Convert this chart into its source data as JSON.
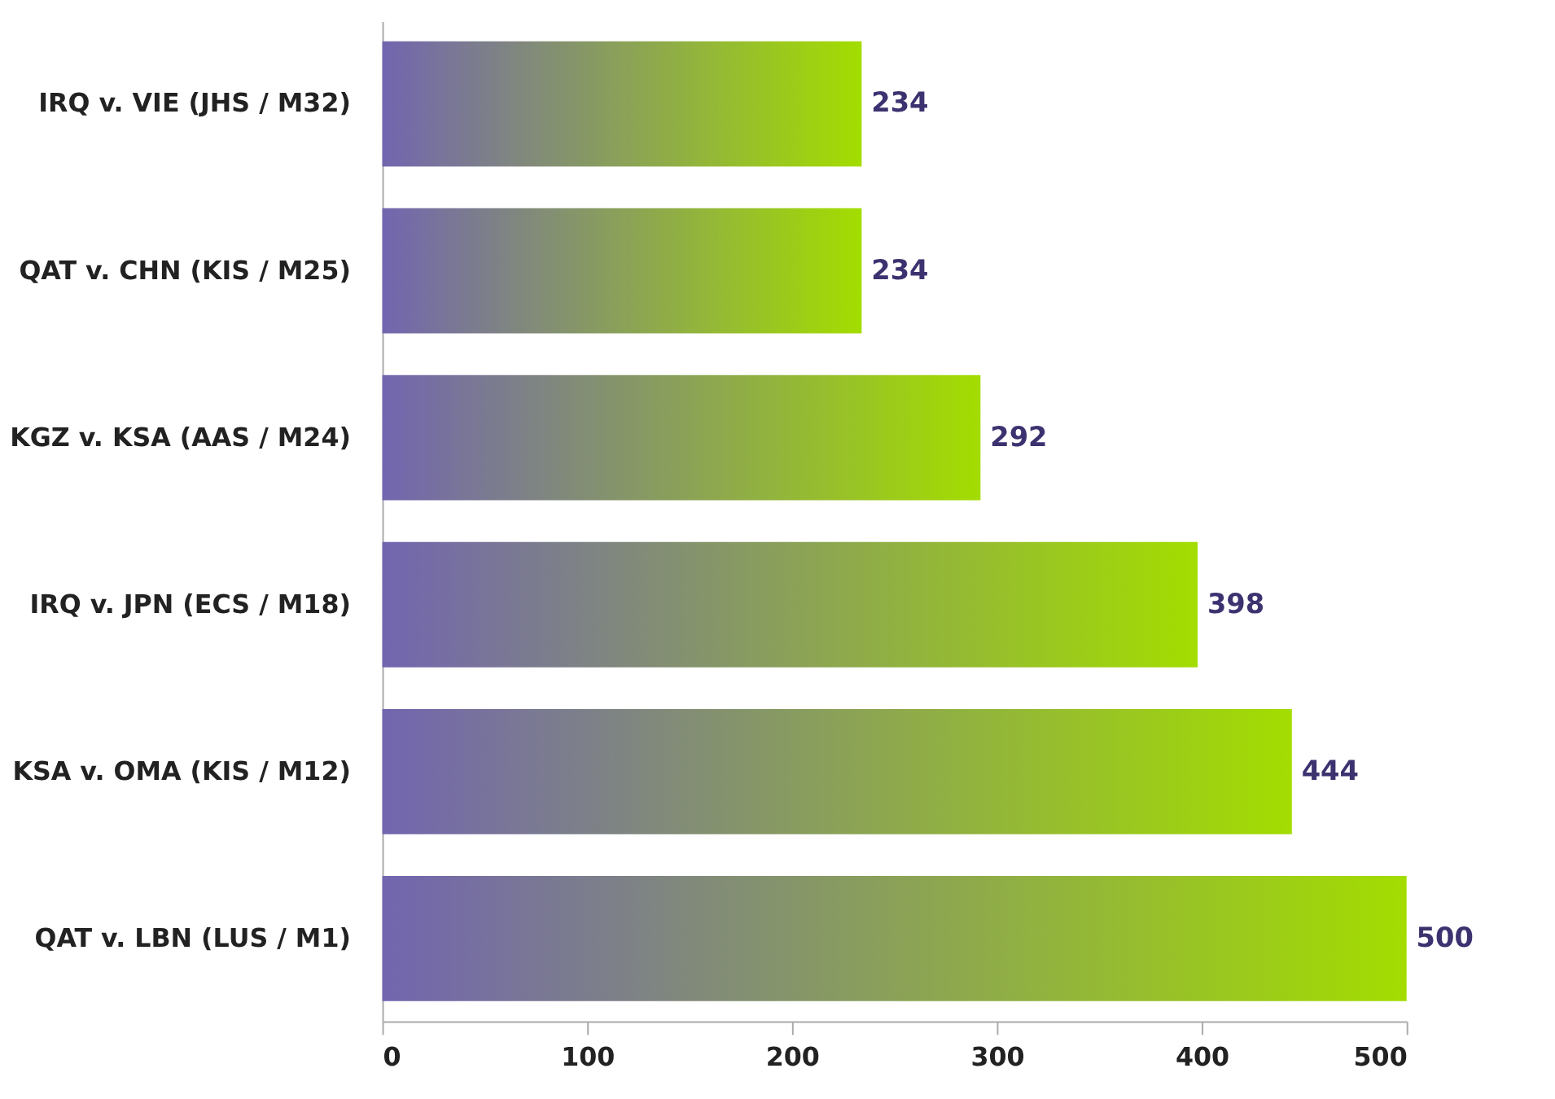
{
  "chart_data": {
    "type": "bar",
    "orientation": "horizontal",
    "categories": [
      "IRQ v. VIE (JHS / M32)",
      "QAT v. CHN (KIS / M25)",
      "KGZ v. KSA (AAS / M24)",
      "IRQ v. JPN (ECS / M18)",
      "KSA v. OMA (KIS / M12)",
      "QAT v. LBN (LUS / M1)"
    ],
    "series": [
      {
        "color": "#a3dd00",
        "values": [
          234,
          234,
          292,
          398,
          444,
          500
        ]
      }
    ],
    "xlim": [
      0,
      500
    ],
    "xticks": [
      0,
      100,
      200,
      300,
      400,
      500
    ],
    "data_labels": true,
    "grid": false
  }
}
